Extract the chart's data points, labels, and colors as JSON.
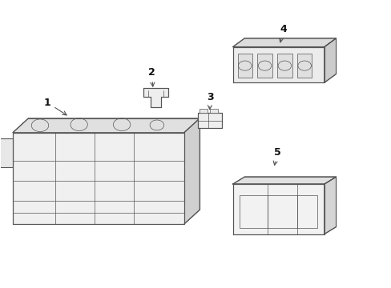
{
  "background_color": "#ffffff",
  "line_color": "#555555",
  "label_color": "#111111",
  "fig_width": 4.89,
  "fig_height": 3.6,
  "dpi": 100
}
